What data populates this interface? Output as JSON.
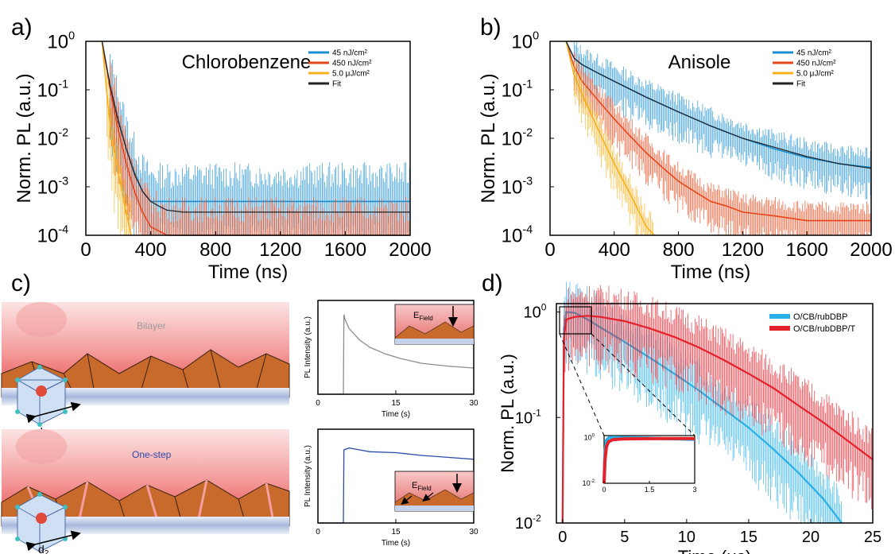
{
  "panel_labels": {
    "a": "a)",
    "b": "b)",
    "c": "c)",
    "d": "d)"
  },
  "colors": {
    "blue": "#1a8fd0",
    "red": "#e8471a",
    "orange": "#f5b01c",
    "fit": "#222222",
    "d_blue": "#2ab0e6",
    "d_red": "#e5212a",
    "grey_trace": "#8c8c8c",
    "blue_trace": "#2d4aa8"
  },
  "chart_data": [
    {
      "id": "a",
      "type": "line",
      "title": "Chlorobenzene",
      "xlabel": "Time (ns)",
      "ylabel": "Norm. PL (a.u.)",
      "xlim": [
        0,
        2000
      ],
      "ylim": [
        0.0001,
        1
      ],
      "yscale": "log",
      "xticks": [
        0,
        400,
        800,
        1200,
        1600,
        2000
      ],
      "xtick_labels": [
        "0",
        "400",
        "800",
        "1200",
        "1600",
        "2000"
      ],
      "ytick_labels": [
        "10",
        "10",
        "10",
        "10",
        "10"
      ],
      "ytick_exponents": [
        "-4",
        "-3",
        "-2",
        "-1",
        "0"
      ],
      "legend_position": "top-right",
      "series": [
        {
          "name": "45 nJ/cm²",
          "color": "#1a8fd0",
          "x": [
            100,
            150,
            200,
            250,
            300,
            350,
            400,
            500,
            700,
            1000,
            1500,
            2000
          ],
          "y": [
            1,
            0.12,
            0.025,
            0.006,
            0.002,
            0.0008,
            0.0005,
            0.0005,
            0.0005,
            0.0005,
            0.0005,
            0.0005
          ]
        },
        {
          "name": "450 nJ/cm²",
          "color": "#e8471a",
          "x": [
            100,
            150,
            200,
            250,
            300,
            350,
            400,
            500,
            700,
            1000,
            1500,
            2000
          ],
          "y": [
            1,
            0.1,
            0.015,
            0.003,
            0.0008,
            0.0003,
            0.00015,
            0.0001,
            0.0001,
            0.0001,
            0.0001,
            0.0001
          ]
        },
        {
          "name": "5.0 μJ/cm²",
          "color": "#f5b01c",
          "x": [
            100,
            130,
            160,
            200,
            240,
            280
          ],
          "y": [
            1,
            0.08,
            0.01,
            0.002,
            0.0004,
            0.0001
          ]
        },
        {
          "name": "Fit",
          "color": "#222222",
          "x": [
            100,
            150,
            200,
            250,
            300,
            350,
            400,
            450,
            500,
            600,
            800,
            1200,
            2000
          ],
          "y": [
            1,
            0.12,
            0.022,
            0.006,
            0.0018,
            0.0008,
            0.0005,
            0.0004,
            0.00033,
            0.0003,
            0.0003,
            0.0003,
            0.0003
          ]
        }
      ]
    },
    {
      "id": "b",
      "type": "line",
      "title": "Anisole",
      "xlabel": "Time (ns)",
      "ylabel": "Norm. PL (a.u.)",
      "xlim": [
        0,
        2000
      ],
      "ylim": [
        0.0001,
        1
      ],
      "yscale": "log",
      "xticks": [
        0,
        400,
        800,
        1200,
        1600,
        2000
      ],
      "xtick_labels": [
        "0",
        "400",
        "800",
        "1200",
        "1600",
        "2000"
      ],
      "ytick_labels": [
        "10",
        "10",
        "10",
        "10",
        "10"
      ],
      "ytick_exponents": [
        "-4",
        "-3",
        "-2",
        "-1",
        "0"
      ],
      "legend_position": "top-right",
      "series": [
        {
          "name": "45 nJ/cm²",
          "color": "#1a8fd0",
          "x": [
            100,
            150,
            200,
            300,
            400,
            600,
            800,
            1000,
            1200,
            1400,
            1600,
            1800,
            2000
          ],
          "y": [
            1,
            0.45,
            0.33,
            0.22,
            0.15,
            0.07,
            0.035,
            0.018,
            0.01,
            0.006,
            0.004,
            0.003,
            0.0025
          ]
        },
        {
          "name": "450 nJ/cm²",
          "color": "#e8471a",
          "x": [
            100,
            150,
            200,
            300,
            400,
            500,
            600,
            700,
            800,
            900,
            1000,
            1100,
            1200,
            1400,
            1600,
            1800,
            2000
          ],
          "y": [
            1,
            0.3,
            0.15,
            0.06,
            0.025,
            0.011,
            0.005,
            0.0025,
            0.0013,
            0.0008,
            0.0005,
            0.0004,
            0.0003,
            0.00025,
            0.0002,
            0.0002,
            0.0002
          ]
        },
        {
          "name": "5.0 μJ/cm²",
          "color": "#f5b01c",
          "x": [
            100,
            150,
            200,
            300,
            400,
            500,
            600,
            650
          ],
          "y": [
            1,
            0.2,
            0.08,
            0.015,
            0.003,
            0.0007,
            0.00015,
            0.0001
          ]
        },
        {
          "name": "Fit",
          "color": "#222222",
          "x": [
            100,
            150,
            200,
            300,
            400,
            600,
            800,
            1000,
            1200,
            1400,
            1600,
            1800,
            2000
          ],
          "y": [
            1,
            0.45,
            0.33,
            0.22,
            0.15,
            0.07,
            0.035,
            0.018,
            0.01,
            0.0065,
            0.0042,
            0.003,
            0.0024
          ]
        }
      ]
    },
    {
      "id": "c-top",
      "type": "line",
      "xlabel": "Time (s)",
      "ylabel": "PL Intensity (a.u.)",
      "xlim": [
        0,
        30
      ],
      "xticks": [
        0,
        15,
        30
      ],
      "xtick_labels": [
        "0",
        "15",
        "30"
      ],
      "series": [
        {
          "color": "#8c8c8c",
          "x": [
            0,
            4.9,
            5,
            5.2,
            6,
            8,
            10,
            13,
            16,
            20,
            25,
            30
          ],
          "y": [
            0,
            0,
            0.85,
            0.8,
            0.7,
            0.58,
            0.5,
            0.43,
            0.38,
            0.33,
            0.3,
            0.28
          ]
        }
      ]
    },
    {
      "id": "c-bottom",
      "type": "line",
      "xlabel": "Time (s)",
      "ylabel": "PL Intensity (a.u.)",
      "xlim": [
        0,
        30
      ],
      "xticks": [
        0,
        15,
        30
      ],
      "xtick_labels": [
        "0",
        "15",
        "30"
      ],
      "series": [
        {
          "color": "#2d4aa8",
          "x": [
            0,
            4.9,
            5,
            6,
            8,
            10,
            15,
            20,
            25,
            30
          ],
          "y": [
            0,
            0,
            0.78,
            0.8,
            0.78,
            0.76,
            0.75,
            0.72,
            0.7,
            0.68
          ]
        }
      ]
    },
    {
      "id": "d",
      "type": "line",
      "xlabel": "Time (μs)",
      "ylabel": "Norm. PL (a.u.)",
      "xlim": [
        -0.5,
        25
      ],
      "ylim": [
        0.01,
        1.2
      ],
      "yscale": "log",
      "xticks": [
        0,
        5,
        10,
        15,
        20,
        25
      ],
      "xtick_labels": [
        "0",
        "5",
        "10",
        "15",
        "20",
        "25"
      ],
      "ytick_labels": [
        "10",
        "10",
        "10"
      ],
      "ytick_exponents": [
        "-2",
        "-1",
        "0"
      ],
      "legend_position": "top-right",
      "series": [
        {
          "name": "O/CB/rubDBP",
          "color": "#2ab0e6",
          "x": [
            0,
            0.1,
            0.3,
            1,
            2,
            3,
            5,
            7,
            9,
            11,
            13,
            15,
            17,
            19,
            21,
            22.5
          ],
          "y": [
            0.01,
            0.7,
            1,
            0.98,
            0.85,
            0.72,
            0.52,
            0.37,
            0.26,
            0.18,
            0.12,
            0.08,
            0.05,
            0.03,
            0.017,
            0.01
          ]
        },
        {
          "name": "O/CB/rubDBP/T",
          "color": "#e5212a",
          "x": [
            0,
            0.1,
            0.3,
            1,
            2,
            3,
            5,
            7,
            9,
            11,
            13,
            15,
            17,
            19,
            21,
            23,
            25
          ],
          "y": [
            0.01,
            0.55,
            0.85,
            0.9,
            0.92,
            0.9,
            0.82,
            0.7,
            0.58,
            0.46,
            0.35,
            0.26,
            0.19,
            0.13,
            0.09,
            0.06,
            0.04
          ]
        }
      ]
    },
    {
      "id": "d-inset",
      "type": "line",
      "xlim": [
        0,
        3
      ],
      "ylim": [
        0.01,
        1.2
      ],
      "yscale": "log",
      "xticks": [
        0,
        1.5,
        3
      ],
      "xtick_labels": [
        "0",
        "1.5",
        "3"
      ],
      "ytick_labels": [
        "10",
        "10"
      ],
      "ytick_exponents": [
        "-2",
        "0"
      ],
      "series": [
        {
          "color": "#2ab0e6",
          "x": [
            0,
            0.03,
            0.08,
            0.15,
            0.3,
            0.6,
            1,
            1.5,
            2,
            2.5,
            3
          ],
          "y": [
            0.01,
            0.2,
            0.75,
            0.95,
            1,
            0.98,
            0.95,
            0.92,
            0.88,
            0.85,
            0.82
          ]
        },
        {
          "color": "#e5212a",
          "x": [
            0,
            0.03,
            0.08,
            0.15,
            0.3,
            0.6,
            1,
            1.5,
            2,
            2.5,
            3
          ],
          "y": [
            0.01,
            0.1,
            0.4,
            0.65,
            0.8,
            0.85,
            0.87,
            0.88,
            0.89,
            0.89,
            0.89
          ]
        }
      ]
    }
  ],
  "schematic": {
    "bilayer_label": "Bilayer",
    "onestep_label": "One-step",
    "d1_main": "d",
    "d1_sub": "1",
    "d2_main": "d",
    "d2_sub": "2",
    "efield_main": "E",
    "efield_sub": "Field"
  }
}
